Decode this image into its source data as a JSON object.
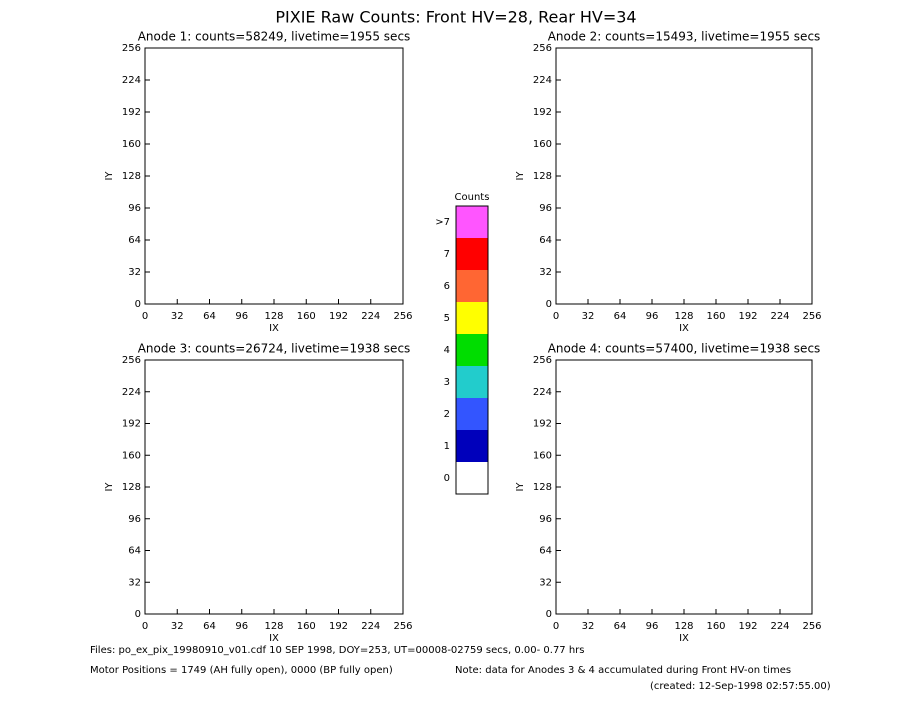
{
  "title": "PIXIE Raw Counts:  Front HV=28, Rear HV=34",
  "chart_data": [
    {
      "type": "image",
      "title": "Anode 1: counts=58249, livetime=1955 secs",
      "xlabel": "IX",
      "ylabel": "IY",
      "xlim": [
        0,
        256
      ],
      "ylim": [
        0,
        256
      ],
      "xticks": [
        0,
        32,
        64,
        96,
        128,
        160,
        192,
        224,
        256
      ],
      "yticks": [
        0,
        32,
        64,
        96,
        128,
        160,
        192,
        224,
        256
      ]
    },
    {
      "type": "image",
      "title": "Anode 2: counts=15493, livetime=1955 secs",
      "xlabel": "IX",
      "ylabel": "IY",
      "xlim": [
        0,
        256
      ],
      "ylim": [
        0,
        256
      ],
      "xticks": [
        0,
        32,
        64,
        96,
        128,
        160,
        192,
        224,
        256
      ],
      "yticks": [
        0,
        32,
        64,
        96,
        128,
        160,
        192,
        224,
        256
      ]
    },
    {
      "type": "image",
      "title": "Anode 3: counts=26724, livetime=1938 secs",
      "xlabel": "IX",
      "ylabel": "IY",
      "xlim": [
        0,
        256
      ],
      "ylim": [
        0,
        256
      ],
      "xticks": [
        0,
        32,
        64,
        96,
        128,
        160,
        192,
        224,
        256
      ],
      "yticks": [
        0,
        32,
        64,
        96,
        128,
        160,
        192,
        224,
        256
      ]
    },
    {
      "type": "image",
      "title": "Anode 4: counts=57400, livetime=1938 secs",
      "xlabel": "IX",
      "ylabel": "IY",
      "xlim": [
        0,
        256
      ],
      "ylim": [
        0,
        256
      ],
      "xticks": [
        0,
        32,
        64,
        96,
        128,
        160,
        192,
        224,
        256
      ],
      "yticks": [
        0,
        32,
        64,
        96,
        128,
        160,
        192,
        224,
        256
      ]
    }
  ],
  "colorbar": {
    "title": "Counts",
    "levels": [
      {
        "label": ">7",
        "color": "#ff55ff"
      },
      {
        "label": "7",
        "color": "#ff0000"
      },
      {
        "label": "6",
        "color": "#ff6633"
      },
      {
        "label": "5",
        "color": "#ffff00"
      },
      {
        "label": "4",
        "color": "#00dd00"
      },
      {
        "label": "3",
        "color": "#22cccc"
      },
      {
        "label": "2",
        "color": "#3355ff"
      },
      {
        "label": "1",
        "color": "#0000bb"
      },
      {
        "label": "0",
        "color": "#ffffff"
      }
    ]
  },
  "footer": {
    "files": "Files: po_ex_pix_19980910_v01.cdf    10 SEP 1998, DOY=253, UT=00008-02759 secs,  0.00- 0.77 hrs",
    "motor": "Motor Positions = 1749 (AH fully open), 0000 (BP fully open)",
    "note": "Note: data for Anodes 3 & 4 accumulated during Front HV-on times",
    "created": "(created: 12-Sep-1998 02:57:55.00)"
  }
}
